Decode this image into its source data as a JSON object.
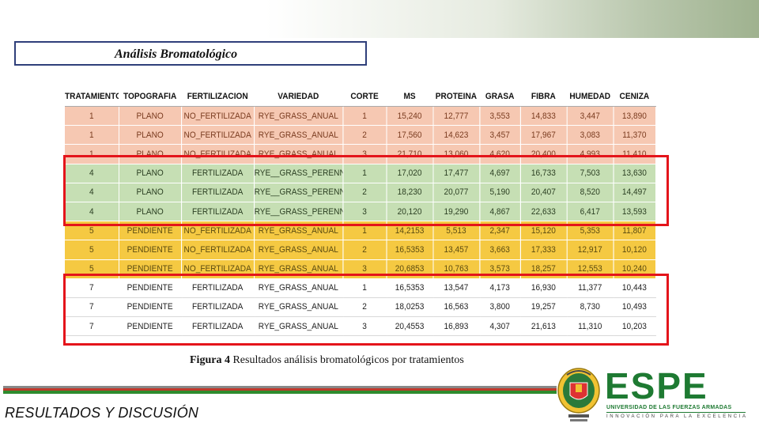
{
  "slide": {
    "title": "Análisis Bromatológico",
    "caption_label": "Figura 4",
    "caption_text": " Resultados análisis bromatológicos por tratamientos",
    "section_title": "RESULTADOS Y DISCUSIÓN"
  },
  "logo": {
    "brand": "ESPE",
    "university": "UNIVERSIDAD DE LAS FUERZAS ARMADAS",
    "slogan": "INNOVACIÓN PARA LA EXCELENCIA",
    "brand_color": "#1e7a32"
  },
  "table": {
    "headers": [
      "TRATAMIENTO",
      "TOPOGRAFIA",
      "FERTILIZACION",
      "VARIEDAD",
      "CORTE",
      "MS",
      "PROTEINA",
      "GRASA",
      "FIBRA",
      "HUMEDAD",
      "CENIZA"
    ],
    "rows": [
      {
        "group": "salmon",
        "cells": [
          "1",
          "PLANO",
          "NO_FERTILIZADA",
          "RYE_GRASS_ANUAL",
          "1",
          "15,240",
          "12,777",
          "3,553",
          "14,833",
          "3,447",
          "13,890"
        ]
      },
      {
        "group": "salmon",
        "cells": [
          "1",
          "PLANO",
          "NO_FERTILIZADA",
          "RYE_GRASS_ANUAL",
          "2",
          "17,560",
          "14,623",
          "3,457",
          "17,967",
          "3,083",
          "11,370"
        ]
      },
      {
        "group": "salmon",
        "cells": [
          "1",
          "PLANO",
          "NO_FERTILIZADA",
          "RYE_GRASS_ANUAL",
          "3",
          "21,710",
          "13,060",
          "4,620",
          "20,400",
          "4,993",
          "11,410"
        ]
      },
      {
        "group": "green",
        "cells": [
          "4",
          "PLANO",
          "FERTILIZADA",
          "RYE__GRASS_PERENNE",
          "1",
          "17,020",
          "17,477",
          "4,697",
          "16,733",
          "7,503",
          "13,630"
        ]
      },
      {
        "group": "green",
        "cells": [
          "4",
          "PLANO",
          "FERTILIZADA",
          "RYE__GRASS_PERENNE",
          "2",
          "18,230",
          "20,077",
          "5,190",
          "20,407",
          "8,520",
          "14,497"
        ]
      },
      {
        "group": "green",
        "cells": [
          "4",
          "PLANO",
          "FERTILIZADA",
          "RYE__GRASS_PERENNE",
          "3",
          "20,120",
          "19,290",
          "4,867",
          "22,633",
          "6,417",
          "13,593"
        ]
      },
      {
        "group": "yellow",
        "cells": [
          "5",
          "PENDIENTE",
          "NO_FERTILIZADA",
          "RYE_GRASS_ANUAL",
          "1",
          "14,2153",
          "5,513",
          "2,347",
          "15,120",
          "5,353",
          "11,807"
        ]
      },
      {
        "group": "yellow",
        "cells": [
          "5",
          "PENDIENTE",
          "NO_FERTILIZADA",
          "RYE_GRASS_ANUAL",
          "2",
          "16,5353",
          "13,457",
          "3,663",
          "17,333",
          "12,917",
          "10,120"
        ]
      },
      {
        "group": "yellow",
        "cells": [
          "5",
          "PENDIENTE",
          "NO_FERTILIZADA",
          "RYE_GRASS_ANUAL",
          "3",
          "20,6853",
          "10,763",
          "3,573",
          "18,257",
          "12,553",
          "10,240"
        ]
      },
      {
        "group": "white",
        "cells": [
          "7",
          "PENDIENTE",
          "FERTILIZADA",
          "RYE_GRASS_ANUAL",
          "1",
          "16,5353",
          "13,547",
          "4,173",
          "16,930",
          "11,377",
          "10,443"
        ]
      },
      {
        "group": "white",
        "cells": [
          "7",
          "PENDIENTE",
          "FERTILIZADA",
          "RYE_GRASS_ANUAL",
          "2",
          "18,0253",
          "16,563",
          "3,800",
          "19,257",
          "8,730",
          "10,493"
        ]
      },
      {
        "group": "white",
        "cells": [
          "7",
          "PENDIENTE",
          "FERTILIZADA",
          "RYE_GRASS_ANUAL",
          "3",
          "20,4553",
          "16,893",
          "4,307",
          "21,613",
          "11,310",
          "10,203"
        ]
      }
    ]
  },
  "colors": {
    "highlight": "#e4141b",
    "group_salmon": "#f6c8b2",
    "group_green": "#c6dfb4",
    "group_yellow": "#f5c942",
    "group_white": "#ffffff"
  }
}
